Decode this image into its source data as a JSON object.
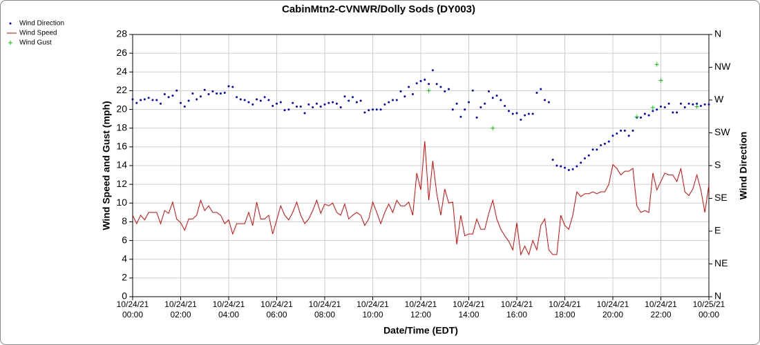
{
  "chart_data": {
    "type": "line",
    "title": "CabinMtn2-CVNWR/Dolly Sods (DY003)",
    "xlabel": "Date/Time (EDT)",
    "ylabel": "Wind Speed and Gust (mph)",
    "y2label": "Wind Direction",
    "legend": "top-left",
    "grid": true,
    "xlim": [
      "10/24/21 00:00",
      "10/25/21 00:00"
    ],
    "xticks": [
      "10/24/21 00:00",
      "10/24/21 02:00",
      "10/24/21 04:00",
      "10/24/21 06:00",
      "10/24/21 08:00",
      "10/24/21 10:00",
      "10/24/21 12:00",
      "10/24/21 14:00",
      "10/24/21 16:00",
      "10/24/21 18:00",
      "10/24/21 20:00",
      "10/24/21 22:00",
      "10/25/21 00:00"
    ],
    "ylim": [
      0,
      28
    ],
    "yticks": [
      0,
      2,
      4,
      6,
      8,
      10,
      12,
      14,
      16,
      18,
      20,
      22,
      24,
      26,
      28
    ],
    "y2lim": [
      0,
      360
    ],
    "y2ticks": [
      {
        "value": 0,
        "label": "N"
      },
      {
        "value": 45,
        "label": "NE"
      },
      {
        "value": 90,
        "label": "E"
      },
      {
        "value": 135,
        "label": "SE"
      },
      {
        "value": 180,
        "label": "S"
      },
      {
        "value": 225,
        "label": "SW"
      },
      {
        "value": 270,
        "label": "W"
      },
      {
        "value": 315,
        "label": "NW"
      },
      {
        "value": 360,
        "label": "N"
      }
    ],
    "x": [
      "10/24/21 00:00",
      "10/24/21 00:10",
      "10/24/21 00:20",
      "10/24/21 00:30",
      "10/24/21 00:40",
      "10/24/21 00:50",
      "10/24/21 01:00",
      "10/24/21 01:10",
      "10/24/21 01:20",
      "10/24/21 01:30",
      "10/24/21 01:40",
      "10/24/21 01:50",
      "10/24/21 02:00",
      "10/24/21 02:10",
      "10/24/21 02:20",
      "10/24/21 02:30",
      "10/24/21 02:40",
      "10/24/21 02:50",
      "10/24/21 03:00",
      "10/24/21 03:10",
      "10/24/21 03:20",
      "10/24/21 03:30",
      "10/24/21 03:40",
      "10/24/21 03:50",
      "10/24/21 04:00",
      "10/24/21 04:10",
      "10/24/21 04:20",
      "10/24/21 04:30",
      "10/24/21 04:40",
      "10/24/21 04:50",
      "10/24/21 05:00",
      "10/24/21 05:10",
      "10/24/21 05:20",
      "10/24/21 05:30",
      "10/24/21 05:40",
      "10/24/21 05:50",
      "10/24/21 06:00",
      "10/24/21 06:10",
      "10/24/21 06:20",
      "10/24/21 06:30",
      "10/24/21 06:40",
      "10/24/21 06:50",
      "10/24/21 07:00",
      "10/24/21 07:10",
      "10/24/21 07:20",
      "10/24/21 07:30",
      "10/24/21 07:40",
      "10/24/21 07:50",
      "10/24/21 08:00",
      "10/24/21 08:10",
      "10/24/21 08:20",
      "10/24/21 08:30",
      "10/24/21 08:40",
      "10/24/21 08:50",
      "10/24/21 09:00",
      "10/24/21 09:10",
      "10/24/21 09:20",
      "10/24/21 09:30",
      "10/24/21 09:40",
      "10/24/21 09:50",
      "10/24/21 10:00",
      "10/24/21 10:10",
      "10/24/21 10:20",
      "10/24/21 10:30",
      "10/24/21 10:40",
      "10/24/21 10:50",
      "10/24/21 11:00",
      "10/24/21 11:10",
      "10/24/21 11:20",
      "10/24/21 11:30",
      "10/24/21 11:40",
      "10/24/21 11:50",
      "10/24/21 12:00",
      "10/24/21 12:10",
      "10/24/21 12:20",
      "10/24/21 12:30",
      "10/24/21 12:40",
      "10/24/21 12:50",
      "10/24/21 13:00",
      "10/24/21 13:10",
      "10/24/21 13:20",
      "10/24/21 13:30",
      "10/24/21 13:40",
      "10/24/21 13:50",
      "10/24/21 14:00",
      "10/24/21 14:10",
      "10/24/21 14:20",
      "10/24/21 14:30",
      "10/24/21 14:40",
      "10/24/21 14:50",
      "10/24/21 15:00",
      "10/24/21 15:10",
      "10/24/21 15:20",
      "10/24/21 15:30",
      "10/24/21 15:40",
      "10/24/21 15:50",
      "10/24/21 16:00",
      "10/24/21 16:10",
      "10/24/21 16:20",
      "10/24/21 16:30",
      "10/24/21 16:40",
      "10/24/21 16:50",
      "10/24/21 17:00",
      "10/24/21 17:10",
      "10/24/21 17:20",
      "10/24/21 17:30",
      "10/24/21 17:40",
      "10/24/21 17:50",
      "10/24/21 18:00",
      "10/24/21 18:10",
      "10/24/21 18:20",
      "10/24/21 18:30",
      "10/24/21 18:40",
      "10/24/21 18:50",
      "10/24/21 19:00",
      "10/24/21 19:10",
      "10/24/21 19:20",
      "10/24/21 19:30",
      "10/24/21 19:40",
      "10/24/21 19:50",
      "10/24/21 20:00",
      "10/24/21 20:10",
      "10/24/21 20:20",
      "10/24/21 20:30",
      "10/24/21 20:40",
      "10/24/21 20:50",
      "10/24/21 21:00",
      "10/24/21 21:10",
      "10/24/21 21:20",
      "10/24/21 21:30",
      "10/24/21 21:40",
      "10/24/21 21:50",
      "10/24/21 22:00",
      "10/24/21 22:10",
      "10/24/21 22:20",
      "10/24/21 22:30",
      "10/24/21 22:40",
      "10/24/21 22:50",
      "10/24/21 23:00",
      "10/24/21 23:10",
      "10/24/21 23:20",
      "10/24/21 23:30",
      "10/24/21 23:40",
      "10/24/21 23:50",
      "10/25/21 00:00"
    ],
    "series": [
      {
        "name": "Wind Direction",
        "color": "#0000cc",
        "style": "dots",
        "axis": "y2",
        "values": [
          271,
          266,
          270,
          271,
          273,
          270,
          270,
          265,
          278,
          274,
          276,
          283,
          266,
          261,
          269,
          279,
          271,
          275,
          284,
          278,
          282,
          279,
          279,
          280,
          289,
          288,
          274,
          271,
          270,
          267,
          264,
          271,
          269,
          274,
          270,
          262,
          265,
          267,
          256,
          257,
          266,
          261,
          261,
          252,
          264,
          260,
          265,
          261,
          264,
          266,
          267,
          265,
          260,
          275,
          269,
          274,
          267,
          269,
          253,
          256,
          257,
          257,
          257,
          264,
          267,
          270,
          270,
          282,
          275,
          288,
          278,
          293,
          296,
          298,
          292,
          311,
          292,
          288,
          282,
          285,
          257,
          265,
          247,
          257,
          267,
          283,
          246,
          260,
          265,
          282,
          273,
          276,
          270,
          262,
          255,
          251,
          252,
          243,
          249,
          251,
          251,
          280,
          285,
          270,
          267,
          188,
          180,
          179,
          177,
          174,
          175,
          179,
          184,
          190,
          194,
          202,
          202,
          208,
          210,
          213,
          221,
          224,
          228,
          228,
          221,
          228,
          246,
          246,
          251,
          249,
          255,
          257,
          261,
          260,
          265,
          253,
          253,
          265,
          260,
          265,
          264,
          265,
          262,
          264,
          264
        ]
      },
      {
        "name": "Wind Speed",
        "color": "#dd0000",
        "style": "line",
        "values": [
          8.7,
          7.8,
          8.7,
          8.2,
          9.0,
          9.0,
          9.0,
          7.8,
          9.2,
          8.9,
          10.1,
          8.3,
          7.9,
          7.1,
          8.3,
          8.3,
          8.7,
          10.3,
          9.2,
          9.7,
          9.0,
          9.0,
          8.7,
          7.8,
          8.2,
          6.7,
          7.8,
          7.8,
          7.8,
          9.0,
          7.6,
          10.1,
          8.3,
          8.3,
          8.7,
          6.7,
          8.2,
          9.7,
          8.7,
          8.2,
          9.0,
          10.1,
          8.7,
          7.8,
          8.3,
          9.2,
          10.3,
          8.9,
          9.9,
          9.7,
          10.0,
          9.0,
          8.7,
          9.9,
          8.3,
          8.7,
          9.0,
          8.7,
          7.6,
          8.3,
          10.1,
          9.0,
          7.8,
          9.0,
          9.9,
          9.0,
          10.3,
          9.7,
          9.7,
          10.1,
          8.7,
          13.2,
          11.4,
          16.6,
          10.3,
          14.5,
          11.0,
          8.7,
          11.5,
          10.0,
          10.1,
          5.6,
          8.7,
          6.5,
          6.7,
          6.7,
          8.3,
          7.2,
          7.2,
          8.9,
          10.3,
          8.3,
          7.2,
          6.5,
          5.9,
          5.0,
          7.9,
          4.5,
          5.4,
          4.5,
          6.0,
          5.0,
          7.6,
          8.3,
          5.0,
          4.5,
          4.5,
          8.7,
          7.6,
          7.2,
          8.7,
          11.2,
          10.7,
          11.0,
          11.0,
          11.2,
          11.0,
          11.2,
          11.2,
          12.0,
          14.1,
          13.7,
          13.0,
          13.4,
          13.4,
          13.7,
          9.7,
          9.0,
          9.2,
          9.0,
          13.2,
          11.4,
          12.3,
          13.2,
          13.0,
          13.0,
          12.3,
          13.7,
          11.2,
          10.8,
          11.5,
          13.0,
          11.4,
          9.0,
          11.9
        ]
      },
      {
        "name": "Wind Gust",
        "color": "#00cc00",
        "style": "plus",
        "x": [
          "10/24/21 12:20",
          "10/24/21 15:00",
          "10/24/21 21:00",
          "10/24/21 21:40",
          "10/24/21 21:50",
          "10/24/21 22:00",
          "10/24/21 23:30"
        ],
        "values": [
          22.0,
          18.0,
          19.2,
          20.2,
          24.8,
          23.1,
          20.3
        ]
      }
    ]
  }
}
